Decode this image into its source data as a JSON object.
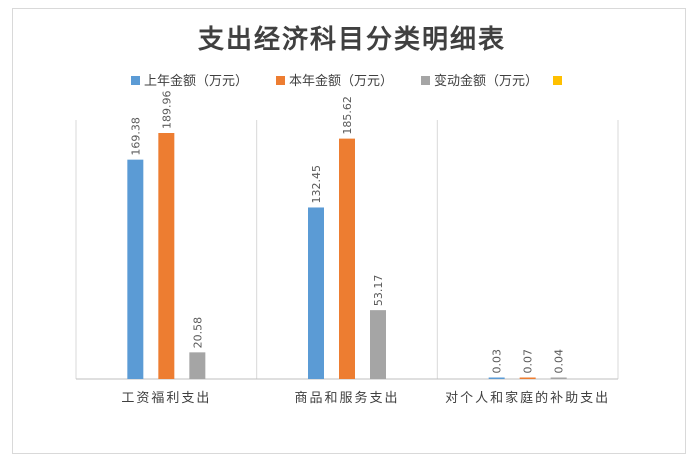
{
  "chart_data": {
    "type": "bar",
    "title": "支出经济科目分类明细表",
    "categories": [
      "工资福利支出",
      "商品和服务支出",
      "对个人和家庭的补助支出"
    ],
    "series": [
      {
        "name": "上年金额（万元）",
        "color": "#5b9bd5",
        "values": [
          169.38,
          132.45,
          0.03
        ],
        "labels": [
          "169.38",
          "132.45",
          "0.03"
        ]
      },
      {
        "name": "本年金额（万元）",
        "color": "#ed7d31",
        "values": [
          189.96,
          185.62,
          0.07
        ],
        "labels": [
          "189.96",
          "185.62",
          "0.07"
        ]
      },
      {
        "name": "变动金额（万元）",
        "color": "#a5a5a5",
        "values": [
          20.58,
          53.17,
          0.04
        ],
        "labels": [
          "20.58",
          "53.17",
          "0.04"
        ]
      },
      {
        "name": "",
        "color": "#ffc000",
        "values": [
          0,
          0,
          0
        ],
        "labels": [
          "",
          "",
          ""
        ]
      }
    ],
    "ylim": [
      0,
      200
    ],
    "grid": "vertical category separators",
    "legend": "top"
  }
}
